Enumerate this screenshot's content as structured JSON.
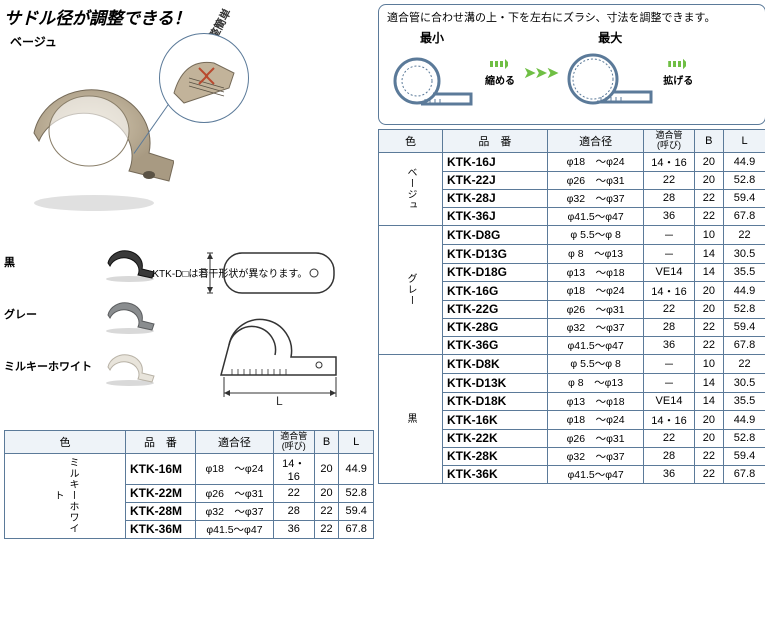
{
  "headline": "サドル径が調整できる！",
  "labels": {
    "beige": "ベージュ",
    "black": "黒",
    "grey": "グレー",
    "milky": "ミルキーホワイト"
  },
  "callout_text": "溝付で位置調整簡単",
  "footnote": "※KTK-D□は若干形状が異なります。",
  "diagram": {
    "desc": "適合管に合わせ溝の上・下を左右にズラシ、寸法を調整できます。",
    "min": "最小",
    "max": "最大",
    "shrink": "縮める",
    "expand": "拡げる"
  },
  "headers": {
    "color": "色",
    "part": "品　番",
    "diameter": "適合径",
    "tube": "適合管\n(呼び)",
    "b": "B",
    "l": "L"
  },
  "left_table": {
    "color_label": "ミルキーホワイト",
    "rows": [
      {
        "part": "KTK-16M",
        "diam": "φ18　～φ24",
        "tube": "14・16",
        "b": "20",
        "l": "44.9"
      },
      {
        "part": "KTK-22M",
        "diam": "φ26　～φ31",
        "tube": "22",
        "b": "20",
        "l": "52.8"
      },
      {
        "part": "KTK-28M",
        "diam": "φ32　～φ37",
        "tube": "28",
        "b": "22",
        "l": "59.4"
      },
      {
        "part": "KTK-36M",
        "diam": "φ41.5～φ47",
        "tube": "36",
        "b": "22",
        "l": "67.8"
      }
    ]
  },
  "right_table": {
    "groups": [
      {
        "color_label": "ベージュ",
        "rows": [
          {
            "part": "KTK-16J",
            "diam": "φ18　～φ24",
            "tube": "14・16",
            "b": "20",
            "l": "44.9"
          },
          {
            "part": "KTK-22J",
            "diam": "φ26　～φ31",
            "tube": "22",
            "b": "20",
            "l": "52.8"
          },
          {
            "part": "KTK-28J",
            "diam": "φ32　～φ37",
            "tube": "28",
            "b": "22",
            "l": "59.4"
          },
          {
            "part": "KTK-36J",
            "diam": "φ41.5～φ47",
            "tube": "36",
            "b": "22",
            "l": "67.8"
          }
        ]
      },
      {
        "color_label": "グレー",
        "rows": [
          {
            "part": "KTK-D8G",
            "diam": "φ 5.5～φ 8",
            "tube": "－",
            "b": "10",
            "l": "22"
          },
          {
            "part": "KTK-D13G",
            "diam": "φ 8　～φ13",
            "tube": "－",
            "b": "14",
            "l": "30.5"
          },
          {
            "part": "KTK-D18G",
            "diam": "φ13　～φ18",
            "tube": "VE14",
            "b": "14",
            "l": "35.5"
          },
          {
            "part": "KTK-16G",
            "diam": "φ18　～φ24",
            "tube": "14・16",
            "b": "20",
            "l": "44.9"
          },
          {
            "part": "KTK-22G",
            "diam": "φ26　～φ31",
            "tube": "22",
            "b": "20",
            "l": "52.8"
          },
          {
            "part": "KTK-28G",
            "diam": "φ32　～φ37",
            "tube": "28",
            "b": "22",
            "l": "59.4"
          },
          {
            "part": "KTK-36G",
            "diam": "φ41.5～φ47",
            "tube": "36",
            "b": "22",
            "l": "67.8"
          }
        ]
      },
      {
        "color_label": "黒",
        "rows": [
          {
            "part": "KTK-D8K",
            "diam": "φ 5.5～φ 8",
            "tube": "－",
            "b": "10",
            "l": "22"
          },
          {
            "part": "KTK-D13K",
            "diam": "φ 8　～φ13",
            "tube": "－",
            "b": "14",
            "l": "30.5"
          },
          {
            "part": "KTK-D18K",
            "diam": "φ13　～φ18",
            "tube": "VE14",
            "b": "14",
            "l": "35.5"
          },
          {
            "part": "KTK-16K",
            "diam": "φ18　～φ24",
            "tube": "14・16",
            "b": "20",
            "l": "44.9"
          },
          {
            "part": "KTK-22K",
            "diam": "φ26　～φ31",
            "tube": "22",
            "b": "20",
            "l": "52.8"
          },
          {
            "part": "KTK-28K",
            "diam": "φ32　～φ37",
            "tube": "28",
            "b": "22",
            "l": "59.4"
          },
          {
            "part": "KTK-36K",
            "diam": "φ41.5～φ47",
            "tube": "36",
            "b": "22",
            "l": "67.8"
          }
        ]
      }
    ]
  },
  "colors": {
    "beige": "#c2b39a",
    "black": "#3a3a3a",
    "grey": "#8a8d8f",
    "milky": "#e8e4db",
    "border": "#5b7a99",
    "green": "#6fbf44"
  }
}
